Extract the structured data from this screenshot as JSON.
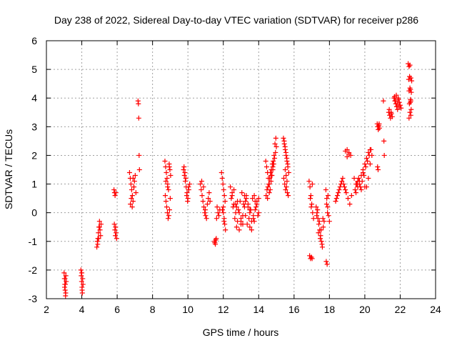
{
  "chart_data": {
    "type": "scatter",
    "title": "Day 238 of 2022, Sidereal Day-to-day VTEC variation (SDTVAR) for receiver p286",
    "xlabel": "GPS time / hours",
    "ylabel": "SDTVAR / TECUs",
    "xlim": [
      2,
      24
    ],
    "ylim": [
      -3,
      6
    ],
    "xticks": [
      2,
      4,
      6,
      8,
      10,
      12,
      14,
      16,
      18,
      20,
      22,
      24
    ],
    "yticks": [
      -3,
      -2,
      -1,
      0,
      1,
      2,
      3,
      4,
      5,
      6
    ],
    "xtick_labels": [
      "2",
      "4",
      "6",
      "8",
      "10",
      "12",
      "14",
      "16",
      "18",
      "20",
      "22",
      "24"
    ],
    "ytick_labels": [
      "-3",
      "-2",
      "-1",
      "0",
      "1",
      "2",
      "3",
      "4",
      "5",
      "6"
    ],
    "grid": true,
    "legend": "none",
    "marker": "plus",
    "color": "#ff0000",
    "series": [
      {
        "x": [
          3.0,
          3.02,
          3.04,
          3.06,
          3.08,
          3.1,
          3.12,
          3.03,
          3.05,
          3.07,
          3.09,
          3.95,
          3.97,
          3.99,
          4.01,
          4.03,
          4.05,
          4.07,
          4.0,
          4.02,
          4.85,
          4.88,
          4.91,
          4.94,
          4.97,
          5.0,
          5.03,
          5.06,
          5.09,
          4.9,
          4.95,
          5.0,
          5.82,
          5.85,
          5.88,
          5.91,
          5.94,
          5.97,
          5.84,
          5.87,
          5.9,
          5.93,
          6.7,
          6.74,
          6.78,
          6.82,
          6.86,
          6.9,
          6.94,
          6.98,
          7.02,
          7.06,
          6.75,
          6.8,
          6.85,
          6.9,
          6.95,
          7.18,
          7.2,
          7.22,
          7.24,
          7.26,
          8.7,
          8.74,
          8.78,
          8.82,
          8.86,
          8.9,
          8.94,
          8.98,
          9.02,
          8.72,
          8.76,
          8.8,
          8.84,
          8.88,
          8.92,
          8.96,
          9.0,
          8.75,
          8.85,
          8.95,
          9.75,
          9.8,
          9.85,
          9.9,
          9.95,
          10.0,
          10.05,
          10.1,
          9.78,
          9.83,
          9.88,
          9.93,
          9.98,
          10.03,
          10.7,
          10.75,
          10.8,
          10.85,
          10.9,
          10.95,
          11.0,
          11.05,
          11.1,
          11.15,
          11.2,
          11.25,
          10.78,
          10.88,
          10.98,
          11.5,
          11.55,
          11.6,
          11.65,
          11.7,
          11.75,
          11.8,
          11.52,
          11.57,
          11.62,
          11.9,
          11.94,
          11.98,
          12.02,
          12.06,
          12.1,
          11.95,
          12.0,
          12.05,
          12.08,
          12.12,
          12.0,
          12.04,
          12.4,
          12.5,
          12.6,
          12.7,
          12.8,
          12.9,
          13.0,
          13.1,
          13.2,
          13.3,
          13.4,
          13.5,
          13.6,
          13.7,
          13.8,
          13.9,
          14.0,
          12.45,
          12.55,
          12.65,
          12.75,
          12.85,
          12.95,
          13.05,
          13.15,
          13.25,
          13.35,
          13.45,
          13.55,
          13.65,
          13.75,
          13.85,
          13.95,
          12.6,
          12.8,
          13.0,
          13.2,
          13.4,
          13.6,
          13.8,
          12.7,
          12.9,
          13.1,
          13.3,
          13.5,
          13.7,
          13.9,
          12.5,
          12.75,
          13.0,
          13.25,
          13.5,
          13.75,
          14.0,
          14.4,
          14.45,
          14.5,
          14.55,
          14.6,
          14.65,
          14.7,
          14.75,
          14.8,
          14.85,
          14.9,
          14.95,
          15.0,
          14.42,
          14.52,
          14.62,
          14.72,
          14.82,
          14.92,
          14.47,
          14.57,
          14.67,
          14.77,
          14.87,
          14.97,
          14.5,
          14.6,
          14.7,
          14.8,
          15.4,
          15.45,
          15.5,
          15.55,
          15.6,
          15.65,
          15.7,
          15.42,
          15.47,
          15.52,
          15.57,
          15.62,
          15.67,
          15.44,
          15.49,
          15.54,
          15.59,
          15.64,
          15.5,
          15.55,
          15.6,
          16.85,
          16.9,
          16.95,
          17.0,
          17.05,
          17.1,
          16.88,
          16.93,
          16.98,
          17.03,
          16.92,
          16.97,
          17.02,
          17.25,
          17.3,
          17.35,
          17.4,
          17.45,
          17.5,
          17.55,
          17.6,
          17.65,
          17.7,
          17.28,
          17.38,
          17.48,
          17.58,
          17.33,
          17.43,
          17.53,
          17.63,
          17.8,
          17.85,
          17.9,
          17.95,
          18.0,
          17.82,
          17.87,
          17.92,
          17.84,
          17.89,
          18.35,
          18.45,
          18.55,
          18.65,
          18.75,
          18.85,
          18.95,
          19.05,
          19.15,
          19.25,
          18.4,
          18.5,
          18.6,
          18.7,
          18.8,
          18.9,
          19.0,
          19.1,
          19.2,
          18.9,
          19.0,
          19.1,
          19.4,
          19.5,
          19.6,
          19.7,
          19.8,
          19.9,
          20.0,
          20.1,
          20.2,
          20.3,
          20.4,
          19.45,
          19.55,
          19.65,
          19.75,
          19.85,
          19.95,
          20.05,
          20.15,
          20.25,
          20.35,
          19.5,
          19.7,
          19.9,
          20.1,
          20.3,
          19.6,
          19.8,
          20.0,
          20.2,
          20.7,
          20.73,
          20.76,
          20.79,
          20.82,
          20.72,
          20.75,
          20.78,
          20.81,
          21.05,
          21.08,
          21.1,
          21.35,
          21.4,
          21.45,
          21.5,
          21.55,
          21.38,
          21.48,
          21.65,
          21.7,
          21.75,
          21.8,
          21.85,
          21.9,
          21.95,
          22.0,
          22.05,
          21.68,
          21.73,
          21.78,
          21.83,
          21.88,
          21.93,
          22.45,
          22.5,
          22.55,
          22.6,
          22.65,
          22.48,
          22.53,
          22.58,
          22.63,
          22.5,
          22.55,
          22.6,
          22.52,
          22.57,
          22.62,
          22.55,
          22.6,
          22.5,
          22.58
        ],
        "y": [
          -2.1,
          -2.3,
          -2.5,
          -2.7,
          -2.9,
          -2.2,
          -2.4,
          -2.6,
          -2.3,
          -2.5,
          -2.8,
          -2.0,
          -2.2,
          -2.4,
          -2.6,
          -2.8,
          -2.3,
          -2.5,
          -2.1,
          -2.7,
          -1.2,
          -1.0,
          -0.9,
          -0.7,
          -0.5,
          -0.3,
          -0.6,
          -0.8,
          -0.4,
          -1.1,
          -0.9,
          -0.5,
          0.8,
          0.7,
          0.6,
          -0.5,
          -0.7,
          -0.9,
          -0.4,
          -0.6,
          -0.8,
          0.7,
          1.4,
          1.2,
          1.0,
          0.8,
          0.6,
          0.4,
          0.9,
          1.1,
          1.3,
          0.7,
          0.3,
          0.5,
          0.2,
          1.2,
          0.9,
          3.9,
          3.8,
          3.3,
          2.0,
          1.5,
          1.8,
          1.6,
          1.4,
          1.2,
          1.0,
          0.8,
          1.7,
          1.5,
          1.3,
          0.6,
          0.4,
          0.2,
          0.0,
          -0.2,
          -0.1,
          0.1,
          0.5,
          1.1,
          0.9,
          1.6,
          1.5,
          1.3,
          1.1,
          0.9,
          0.7,
          0.5,
          0.8,
          1.0,
          1.6,
          1.4,
          1.2,
          0.6,
          0.4,
          0.9,
          1.0,
          0.8,
          0.6,
          0.4,
          0.2,
          0.0,
          -0.1,
          -0.2,
          0.3,
          0.5,
          0.7,
          0.4,
          1.1,
          0.9,
          0.1,
          -1.0,
          -1.1,
          -0.9,
          0.2,
          0.0,
          -0.1,
          0.1,
          -1.05,
          -0.95,
          -0.2,
          1.4,
          1.2,
          1.0,
          0.8,
          0.6,
          0.4,
          0.1,
          0.0,
          -0.2,
          -0.4,
          -0.6,
          0.2,
          -0.3,
          0.9,
          0.6,
          0.3,
          0.0,
          -0.3,
          -0.6,
          -0.4,
          -0.1,
          0.2,
          0.5,
          0.3,
          0.0,
          -0.3,
          -0.2,
          0.1,
          0.4,
          0.0,
          0.5,
          0.2,
          -0.2,
          -0.5,
          0.1,
          0.4,
          0.7,
          0.3,
          -0.1,
          -0.4,
          -0.2,
          0.1,
          0.5,
          0.6,
          0.2,
          -0.1,
          0.8,
          0.4,
          -0.3,
          0.6,
          0.2,
          -0.6,
          0.4,
          0.3,
          0.0,
          -0.4,
          0.6,
          -0.5,
          -0.1,
          0.3,
          0.7,
          0.2,
          -0.2,
          0.4,
          0.1,
          -0.3,
          0.5,
          1.8,
          1.6,
          1.4,
          1.2,
          1.0,
          0.8,
          1.1,
          1.3,
          1.5,
          1.7,
          1.9,
          2.1,
          2.3,
          0.6,
          0.9,
          1.2,
          1.5,
          1.8,
          2.4,
          0.8,
          1.0,
          1.4,
          1.7,
          2.0,
          2.6,
          0.5,
          0.7,
          1.3,
          1.6,
          2.6,
          2.4,
          2.2,
          2.0,
          1.8,
          1.6,
          1.4,
          1.2,
          1.0,
          0.8,
          0.9,
          0.7,
          0.6,
          2.5,
          2.3,
          2.1,
          1.9,
          1.7,
          1.5,
          1.3,
          1.1,
          1.1,
          0.9,
          0.6,
          0.3,
          0.0,
          -0.2,
          -1.5,
          -1.6,
          -1.55,
          1.0,
          0.5,
          0.2,
          -1.6,
          0.2,
          0.0,
          -0.2,
          -0.4,
          -0.6,
          -0.8,
          -1.0,
          -1.2,
          -0.5,
          -0.3,
          -0.1,
          -0.7,
          -0.9,
          -1.1,
          0.1,
          -0.3,
          -0.6,
          -0.2,
          0.8,
          0.5,
          0.2,
          -0.1,
          -0.3,
          -1.7,
          -1.8,
          0.6,
          0.3,
          0.0,
          0.4,
          0.6,
          0.8,
          1.0,
          1.2,
          0.9,
          0.7,
          0.5,
          0.3,
          0.6,
          0.5,
          0.7,
          0.9,
          1.1,
          1.0,
          0.8,
          2.2,
          2.1,
          2.0,
          2.15,
          1.95,
          2.05,
          1.2,
          1.0,
          0.9,
          1.1,
          1.3,
          1.5,
          1.7,
          1.9,
          2.1,
          2.2,
          2.0,
          0.8,
          1.0,
          1.2,
          0.9,
          1.1,
          1.3,
          1.6,
          1.8,
          2.0,
          2.2,
          0.7,
          1.0,
          1.4,
          0.9,
          1.7,
          1.1,
          0.8,
          0.9,
          1.2,
          3.1,
          3.0,
          2.9,
          3.05,
          2.95,
          1.6,
          1.5,
          3.0,
          3.1,
          3.9,
          2.5,
          2.0,
          3.5,
          3.4,
          3.3,
          3.45,
          3.35,
          3.6,
          3.5,
          4.0,
          3.9,
          3.8,
          3.7,
          3.6,
          3.95,
          3.85,
          3.75,
          3.65,
          4.05,
          3.9,
          4.1,
          3.8,
          4.0,
          3.7,
          5.2,
          5.1,
          5.15,
          4.7,
          4.6,
          4.65,
          4.75,
          4.3,
          4.2,
          4.25,
          4.35,
          3.9,
          3.8,
          3.85,
          3.6,
          3.5,
          3.4,
          3.3,
          3.95
        ]
      }
    ]
  }
}
